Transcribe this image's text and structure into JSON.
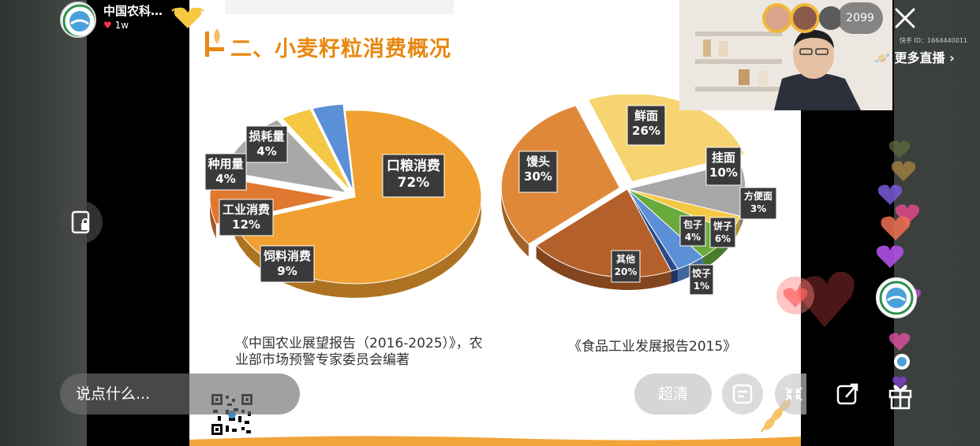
{
  "stream": {
    "anchor_name": "中国农科…",
    "likes": "1w",
    "viewers": "2099",
    "kuaishou_id": "快手 ID：1664440011",
    "more_live": "更多直播",
    "comment_placeholder": "说点什么...",
    "quality_label": "超清"
  },
  "slide": {
    "title": "二、小麦籽粒消费概况",
    "source_left_line1": "《中国农业展望报告（2016-2025）》，农",
    "source_left_line2": "业部市场预警专家委员会编著",
    "source_right": "《食品工业发展报告2015》"
  },
  "chart_data": [
    {
      "type": "pie",
      "categories": [
        "口粮消费",
        "饲料消费",
        "工业消费",
        "种用量",
        "损耗量"
      ],
      "values": [
        72,
        9,
        12,
        4,
        4
      ],
      "labels": [
        "口粮消费 72%",
        "饲料消费 9%",
        "工业消费 12%",
        "种用量 4%",
        "损耗量 4%"
      ],
      "colors": [
        "#f0a030",
        "#e07830",
        "#a8a8a8",
        "#f4c842",
        "#5b8fd6"
      ]
    },
    {
      "type": "pie",
      "categories": [
        "鲜面",
        "挂面",
        "方便面",
        "饼子",
        "包子",
        "饺子",
        "其他",
        "馒头"
      ],
      "values": [
        26,
        10,
        3,
        6,
        4,
        1,
        20,
        30
      ],
      "labels": [
        "鲜面 26%",
        "挂面 10%",
        "方便面 3%",
        "饼子 6%",
        "包子 4%",
        "饺子 1%",
        "其他 20%",
        "馒头 30%"
      ],
      "colors": [
        "#f6d470",
        "#a8a8a8",
        "#f4c842",
        "#6aaa3c",
        "#5b8fd6",
        "#2a4a8a",
        "#b4602a",
        "#e0883a"
      ]
    }
  ]
}
